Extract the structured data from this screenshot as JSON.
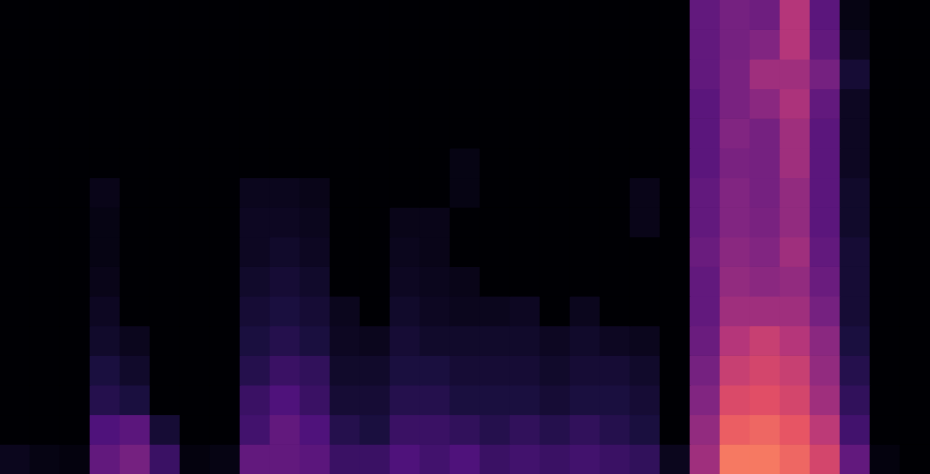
{
  "chart_data": {
    "type": "heatmap",
    "tick_labels": false,
    "zlim": [
      0,
      1
    ],
    "cells": [
      [
        0,
        0,
        0,
        0,
        0,
        0,
        0,
        0,
        0,
        0,
        0,
        0,
        0,
        0,
        0,
        0,
        0,
        0,
        0,
        0,
        0,
        0,
        0,
        0.3,
        0.35,
        0.33,
        0.5,
        0.28,
        0.03,
        0,
        0
      ],
      [
        0,
        0,
        0,
        0,
        0,
        0,
        0,
        0,
        0,
        0,
        0,
        0,
        0,
        0,
        0,
        0,
        0,
        0,
        0,
        0,
        0,
        0,
        0,
        0.3,
        0.35,
        0.38,
        0.5,
        0.3,
        0.05,
        0,
        0
      ],
      [
        0,
        0,
        0,
        0,
        0,
        0,
        0,
        0,
        0,
        0,
        0,
        0,
        0,
        0,
        0,
        0,
        0,
        0,
        0,
        0,
        0,
        0,
        0,
        0.3,
        0.36,
        0.45,
        0.45,
        0.35,
        0.1,
        0,
        0
      ],
      [
        0,
        0,
        0,
        0,
        0,
        0,
        0,
        0,
        0,
        0,
        0,
        0,
        0,
        0,
        0,
        0,
        0,
        0,
        0,
        0,
        0,
        0,
        0,
        0.28,
        0.36,
        0.4,
        0.48,
        0.3,
        0.06,
        0,
        0
      ],
      [
        0,
        0,
        0,
        0,
        0,
        0,
        0,
        0,
        0,
        0,
        0,
        0,
        0,
        0,
        0,
        0,
        0,
        0,
        0,
        0,
        0,
        0,
        0,
        0.28,
        0.38,
        0.35,
        0.45,
        0.28,
        0.06,
        0,
        0
      ],
      [
        0,
        0,
        0,
        0,
        0,
        0,
        0,
        0,
        0,
        0,
        0,
        0,
        0,
        0,
        0,
        0.03,
        0,
        0,
        0,
        0,
        0,
        0,
        0,
        0.28,
        0.36,
        0.35,
        0.45,
        0.28,
        0.06,
        0,
        0
      ],
      [
        0,
        0,
        0,
        0.04,
        0,
        0,
        0,
        0,
        0.05,
        0.05,
        0.04,
        0,
        0,
        0,
        0,
        0.03,
        0,
        0,
        0,
        0,
        0,
        0.04,
        0,
        0.3,
        0.38,
        0.35,
        0.42,
        0.28,
        0.08,
        0,
        0
      ],
      [
        0,
        0,
        0,
        0.03,
        0,
        0,
        0,
        0,
        0.06,
        0.06,
        0.05,
        0,
        0,
        0.04,
        0.04,
        0,
        0,
        0,
        0,
        0,
        0,
        0.04,
        0,
        0.3,
        0.38,
        0.36,
        0.42,
        0.28,
        0.08,
        0,
        0
      ],
      [
        0,
        0,
        0,
        0.03,
        0,
        0,
        0,
        0,
        0.06,
        0.08,
        0.06,
        0,
        0,
        0.05,
        0.04,
        0,
        0,
        0,
        0,
        0,
        0,
        0,
        0,
        0.32,
        0.4,
        0.38,
        0.45,
        0.3,
        0.1,
        0,
        0
      ],
      [
        0,
        0,
        0,
        0.04,
        0,
        0,
        0,
        0,
        0.08,
        0.1,
        0.08,
        0,
        0,
        0.06,
        0.05,
        0.04,
        0,
        0,
        0,
        0,
        0,
        0,
        0,
        0.3,
        0.42,
        0.4,
        0.42,
        0.32,
        0.1,
        0,
        0
      ],
      [
        0,
        0,
        0,
        0.06,
        0,
        0,
        0,
        0,
        0.1,
        0.12,
        0.1,
        0.05,
        0,
        0.08,
        0.06,
        0.05,
        0.05,
        0.06,
        0,
        0.05,
        0,
        0,
        0,
        0.3,
        0.45,
        0.45,
        0.45,
        0.35,
        0.1,
        0,
        0
      ],
      [
        0,
        0,
        0,
        0.08,
        0.05,
        0,
        0,
        0,
        0.12,
        0.15,
        0.12,
        0.06,
        0.05,
        0.1,
        0.08,
        0.08,
        0.08,
        0.08,
        0.06,
        0.08,
        0.06,
        0.05,
        0,
        0.32,
        0.5,
        0.55,
        0.5,
        0.4,
        0.12,
        0,
        0
      ],
      [
        0,
        0,
        0,
        0.12,
        0.08,
        0,
        0,
        0,
        0.15,
        0.2,
        0.18,
        0.08,
        0.08,
        0.12,
        0.12,
        0.1,
        0.1,
        0.1,
        0.08,
        0.1,
        0.1,
        0.08,
        0,
        0.35,
        0.55,
        0.58,
        0.55,
        0.42,
        0.15,
        0,
        0
      ],
      [
        0,
        0,
        0,
        0.15,
        0.12,
        0,
        0,
        0,
        0.2,
        0.25,
        0.2,
        0.1,
        0.1,
        0.15,
        0.15,
        0.12,
        0.12,
        0.12,
        0.1,
        0.12,
        0.12,
        0.1,
        0,
        0.38,
        0.6,
        0.62,
        0.58,
        0.45,
        0.18,
        0,
        0
      ],
      [
        0,
        0,
        0,
        0.25,
        0.28,
        0.1,
        0,
        0,
        0.22,
        0.3,
        0.25,
        0.15,
        0.12,
        0.2,
        0.2,
        0.18,
        0.15,
        0.18,
        0.15,
        0.18,
        0.15,
        0.12,
        0,
        0.42,
        0.66,
        0.68,
        0.64,
        0.52,
        0.22,
        0,
        0
      ],
      [
        0.05,
        0.03,
        0.02,
        0.3,
        0.35,
        0.2,
        0.02,
        0.03,
        0.3,
        0.3,
        0.28,
        0.2,
        0.2,
        0.25,
        0.22,
        0.25,
        0.2,
        0.22,
        0.2,
        0.22,
        0.2,
        0.18,
        0.05,
        0.45,
        0.72,
        0.72,
        0.68,
        0.58,
        0.3,
        0.02,
        0
      ]
    ]
  }
}
